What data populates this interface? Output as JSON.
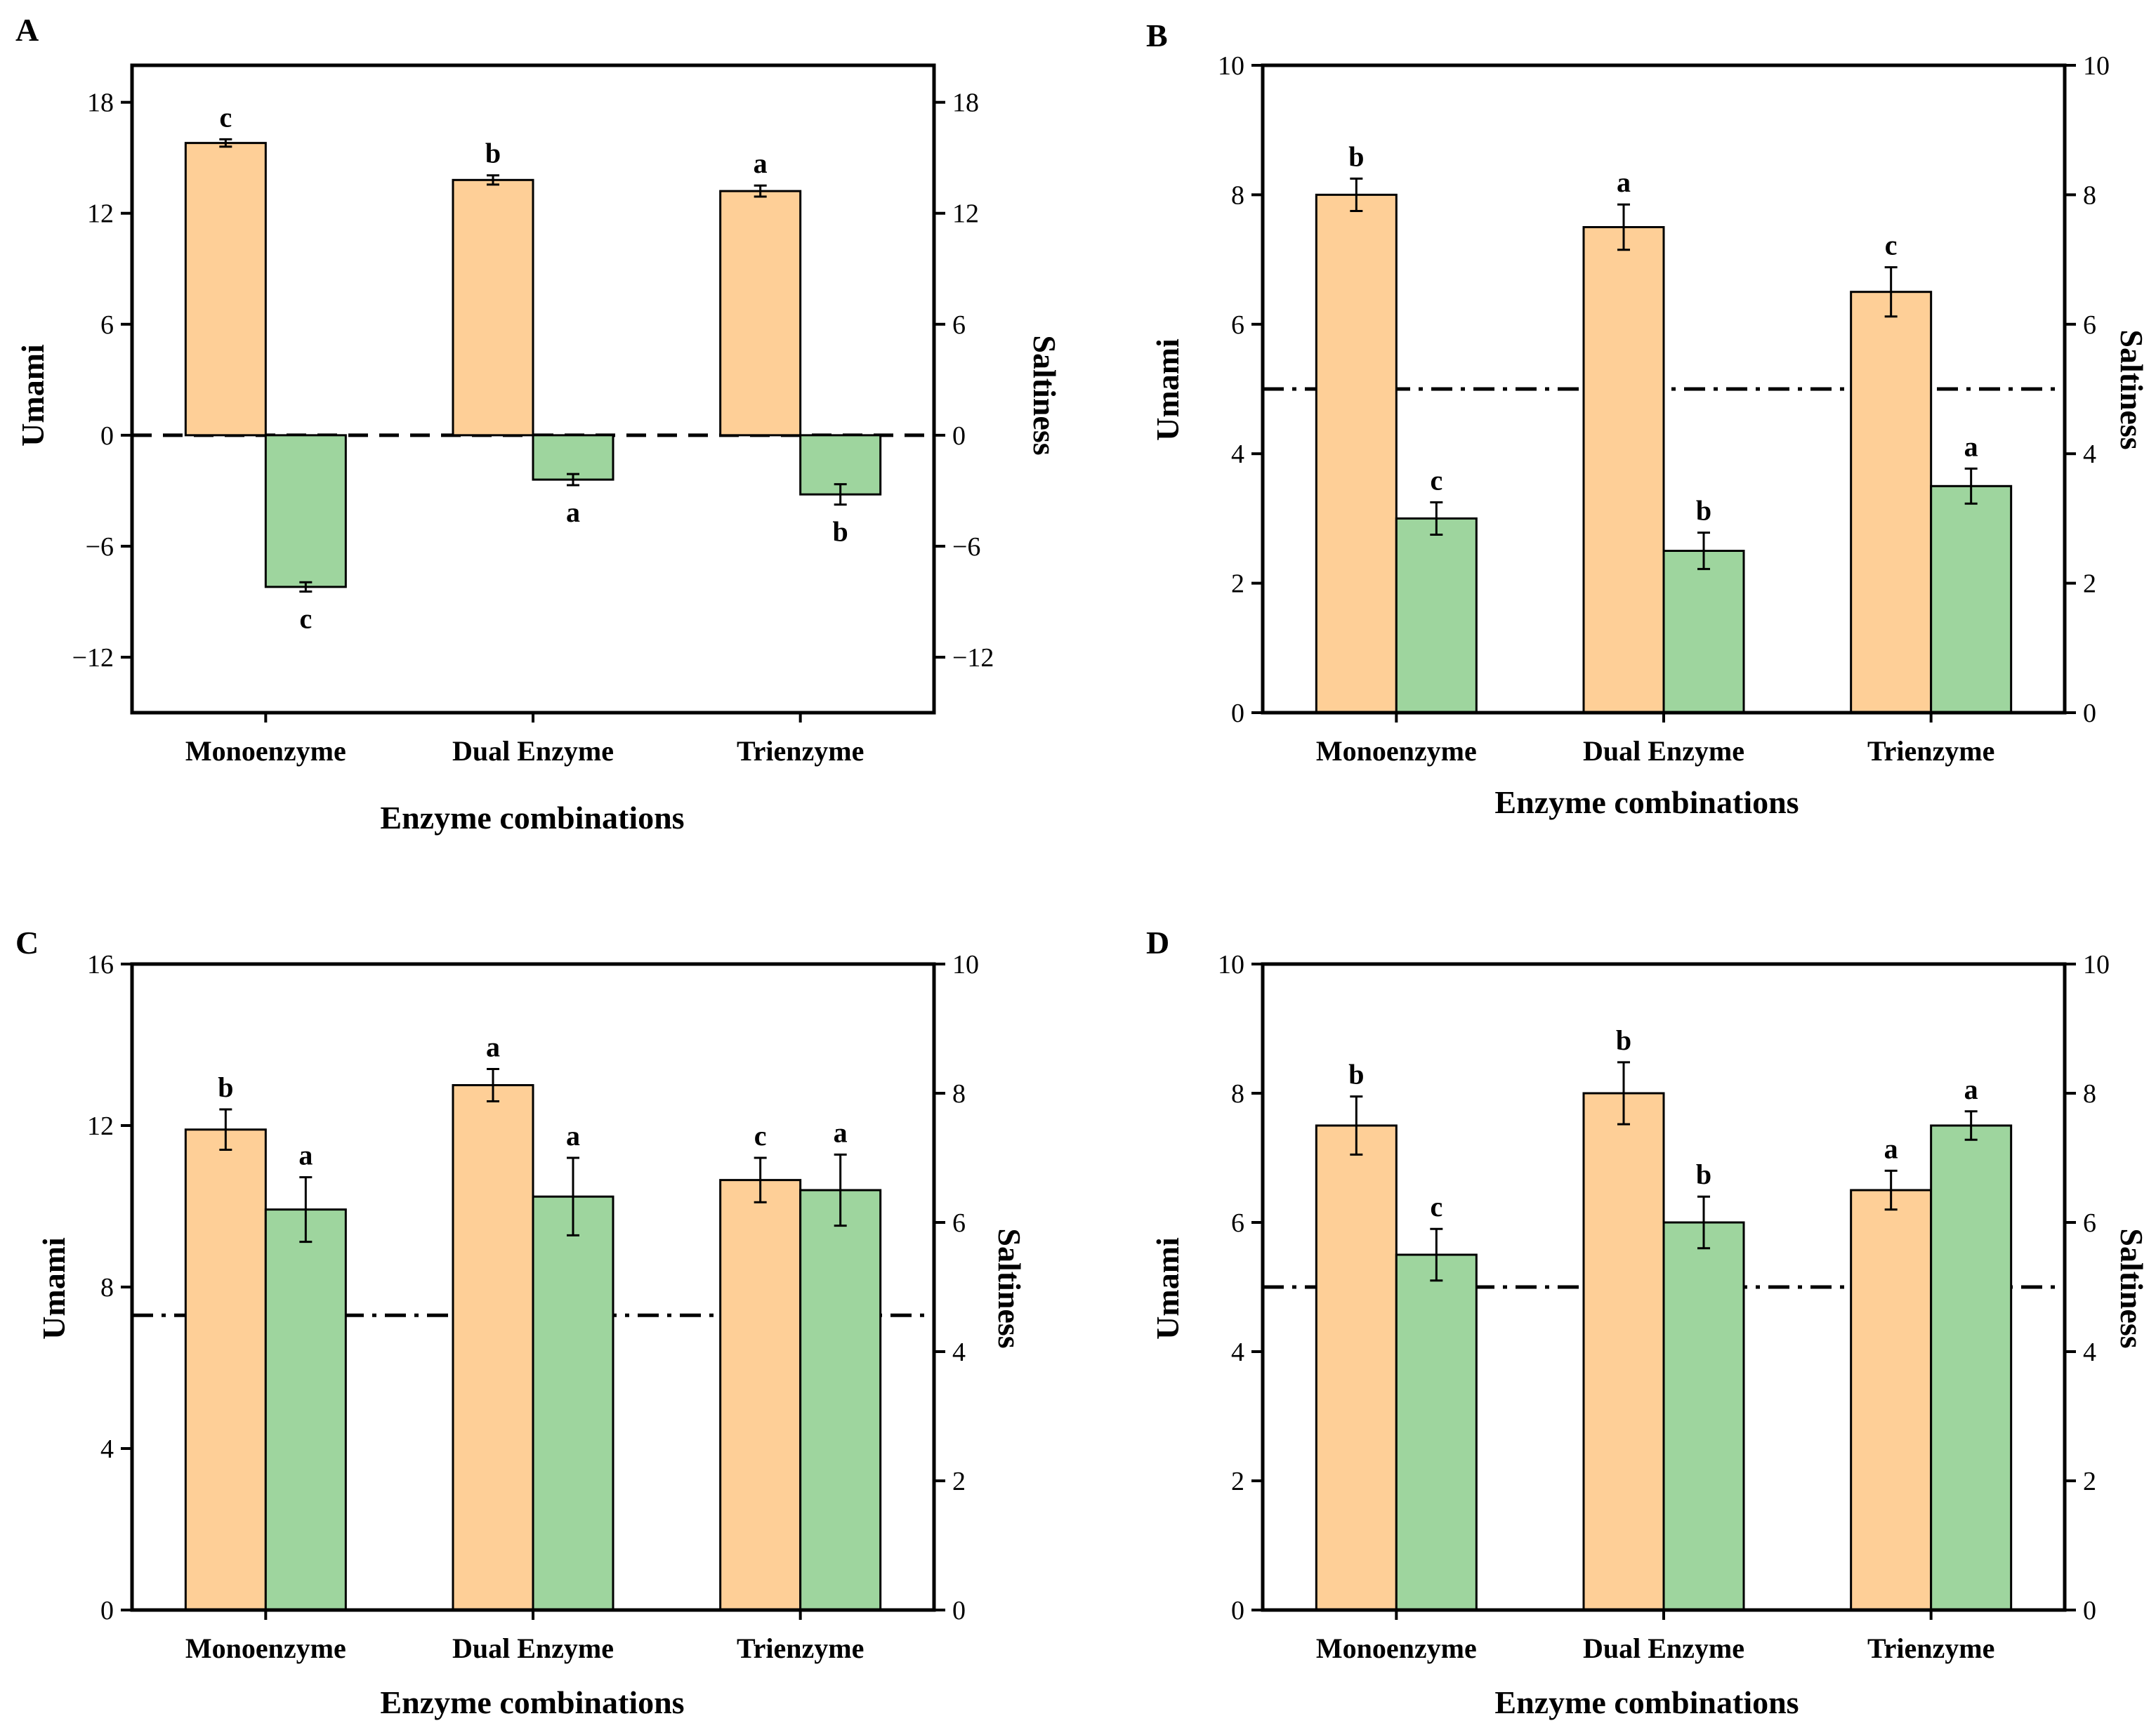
{
  "colors": {
    "umami_bar": "#FECF97",
    "saltiness_bar": "#9ED59E",
    "outline": "#000000",
    "reference_line": "#000000"
  },
  "chart_data": [
    {
      "panel": "A",
      "type": "bar",
      "categories": [
        "Monoenzyme",
        "Dual Enzyme",
        "Trienzyme"
      ],
      "xlabel": "Enzyme combinations",
      "ylabel": "Umami",
      "y2label": "Saltiness",
      "ylim": [
        -15,
        20
      ],
      "y2lim": [
        -15,
        20
      ],
      "yticks": [
        -12,
        -6,
        0,
        6,
        12,
        18
      ],
      "y2ticks": [
        -12,
        -6,
        0,
        6,
        12,
        18
      ],
      "reference_line": {
        "value": 0,
        "style": "dashed"
      },
      "series": [
        {
          "key": "umami",
          "axis": "left",
          "values": [
            15.8,
            13.8,
            13.2
          ],
          "errors": [
            0.2,
            0.25,
            0.3
          ],
          "letters": [
            "c",
            "b",
            "a"
          ]
        },
        {
          "key": "saltiness",
          "axis": "right",
          "values": [
            -8.2,
            -2.4,
            -3.2
          ],
          "errors": [
            0.25,
            0.3,
            0.55
          ],
          "letters": [
            "c",
            "a",
            "b"
          ]
        }
      ]
    },
    {
      "panel": "B",
      "type": "bar",
      "categories": [
        "Monoenzyme",
        "Dual Enzyme",
        "Trienzyme"
      ],
      "xlabel": "Enzyme combinations",
      "ylabel": "Umami",
      "y2label": "Saltiness",
      "ylim": [
        0,
        10
      ],
      "y2lim": [
        0,
        10
      ],
      "yticks": [
        0,
        2,
        4,
        6,
        8,
        10
      ],
      "y2ticks": [
        0,
        2,
        4,
        6,
        8,
        10
      ],
      "reference_line": {
        "value": 5,
        "style": "dashdot"
      },
      "series": [
        {
          "key": "umami",
          "axis": "left",
          "values": [
            8.0,
            7.5,
            6.5
          ],
          "errors": [
            0.25,
            0.35,
            0.38
          ],
          "letters": [
            "b",
            "a",
            "c"
          ]
        },
        {
          "key": "saltiness",
          "axis": "right",
          "values": [
            3.0,
            2.5,
            3.5
          ],
          "errors": [
            0.25,
            0.28,
            0.27
          ],
          "letters": [
            "c",
            "b",
            "a"
          ]
        }
      ]
    },
    {
      "panel": "C",
      "type": "bar",
      "categories": [
        "Monoenzyme",
        "Dual Enzyme",
        "Trienzyme"
      ],
      "xlabel": "Enzyme combinations",
      "ylabel": "Umami",
      "y2label": "Saltiness",
      "ylim": [
        0,
        16
      ],
      "y2lim": [
        0,
        10
      ],
      "yticks": [
        0,
        4,
        8,
        12,
        16
      ],
      "y2ticks": [
        0,
        2,
        4,
        6,
        8,
        10
      ],
      "reference_line": {
        "value": 7.3,
        "style": "dashdot"
      },
      "series": [
        {
          "key": "umami",
          "axis": "left",
          "values": [
            11.9,
            13.0,
            10.65
          ],
          "errors": [
            0.5,
            0.4,
            0.55
          ],
          "letters": [
            "b",
            "a",
            "c"
          ]
        },
        {
          "key": "saltiness",
          "axis": "right",
          "values": [
            6.2,
            6.4,
            6.5
          ],
          "errors": [
            0.5,
            0.6,
            0.55
          ],
          "letters": [
            "a",
            "a",
            "a"
          ]
        }
      ]
    },
    {
      "panel": "D",
      "type": "bar",
      "categories": [
        "Monoenzyme",
        "Dual Enzyme",
        "Trienzyme"
      ],
      "xlabel": "Enzyme combinations",
      "ylabel": "Umami",
      "y2label": "Saltiness",
      "ylim": [
        0,
        10
      ],
      "y2lim": [
        0,
        10
      ],
      "yticks": [
        0,
        2,
        4,
        6,
        8,
        10
      ],
      "y2ticks": [
        0,
        2,
        4,
        6,
        8,
        10
      ],
      "reference_line": {
        "value": 5,
        "style": "dashdot"
      },
      "series": [
        {
          "key": "umami",
          "axis": "left",
          "values": [
            7.5,
            8.0,
            6.5
          ],
          "errors": [
            0.45,
            0.48,
            0.3
          ],
          "letters": [
            "b",
            "b",
            "a"
          ]
        },
        {
          "key": "saltiness",
          "axis": "right",
          "values": [
            5.5,
            6.0,
            7.5
          ],
          "errors": [
            0.4,
            0.4,
            0.22
          ],
          "letters": [
            "c",
            "b",
            "a"
          ]
        }
      ]
    }
  ]
}
